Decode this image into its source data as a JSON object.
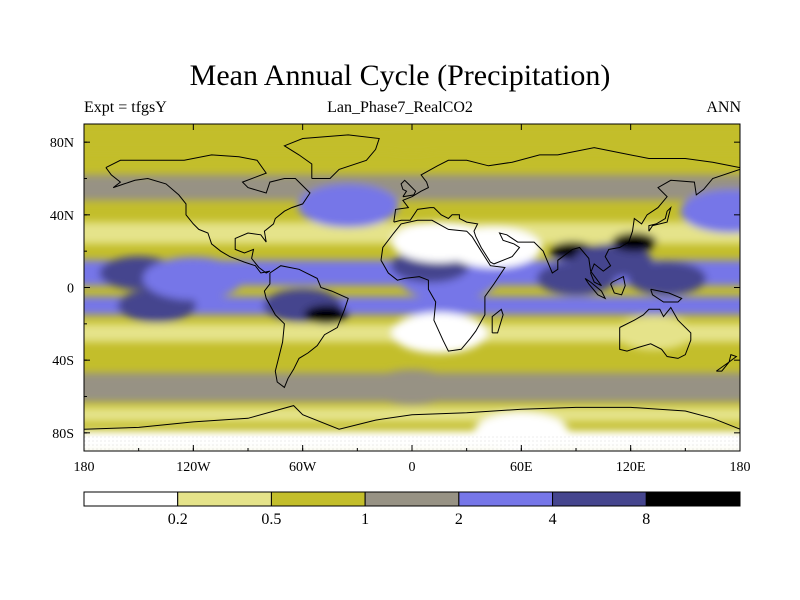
{
  "figure": {
    "title": "Mean Annual Cycle (Precipitation)",
    "left_subtitle": "Expt = tfgsY",
    "center_subtitle": "Lan_Phase7_RealCO2",
    "right_subtitle": "ANN"
  },
  "axes": {
    "x_ticks": [
      {
        "label": "180",
        "lon": -180
      },
      {
        "label": "120W",
        "lon": -120
      },
      {
        "label": "60W",
        "lon": -60
      },
      {
        "label": "0",
        "lon": 0
      },
      {
        "label": "60E",
        "lon": 60
      },
      {
        "label": "120E",
        "lon": 120
      },
      {
        "label": "180",
        "lon": 180
      }
    ],
    "y_ticks": [
      {
        "label": "80N",
        "lat": 80
      },
      {
        "label": "40N",
        "lat": 40
      },
      {
        "label": "0",
        "lat": 0
      },
      {
        "label": "40S",
        "lat": -40
      },
      {
        "label": "80S",
        "lat": -80
      }
    ]
  },
  "colorbar": {
    "labels": [
      "0.2",
      "0.5",
      "1",
      "2",
      "4",
      "8"
    ],
    "colors": [
      "#ffffff",
      "#e5e38a",
      "#c3be2b",
      "#979284",
      "#7676e8",
      "#45458e",
      "#000000"
    ]
  },
  "chart_data": {
    "type": "contour-map",
    "projection": "cylindrical-equidistant",
    "variable": "Precipitation",
    "lon_range": [
      -180,
      180
    ],
    "lat_range": [
      -90,
      90
    ],
    "levels": [
      0.2,
      0.5,
      1,
      2,
      4,
      8
    ],
    "regions": [
      {
        "name": "tropical-pacific-north",
        "lon": -150,
        "lat": 8,
        "level_index": 5
      },
      {
        "name": "tropical-pacific-south",
        "lon": -140,
        "lat": -10,
        "level_index": 5
      },
      {
        "name": "central-pacific-band",
        "lon": -120,
        "lat": 5,
        "level_index": 4
      },
      {
        "name": "indian-ocean-east",
        "lon": 90,
        "lat": 5,
        "level_index": 5
      },
      {
        "name": "bay-of-bengal",
        "lon": 88,
        "lat": 20,
        "level_index": 6
      },
      {
        "name": "south-china-sea",
        "lon": 110,
        "lat": 15,
        "level_index": 5
      },
      {
        "name": "west-pacific-warm-pool",
        "lon": 140,
        "lat": 5,
        "level_index": 5
      },
      {
        "name": "amazon",
        "lon": -60,
        "lat": -10,
        "level_index": 5
      },
      {
        "name": "brazil-max",
        "lon": -47,
        "lat": -15,
        "level_index": 6
      },
      {
        "name": "central-africa",
        "lon": 20,
        "lat": 5,
        "level_index": 4
      },
      {
        "name": "sahel-band",
        "lon": 10,
        "lat": 12,
        "level_index": 5
      },
      {
        "name": "sahara",
        "lon": 15,
        "lat": 25,
        "level_index": 0
      },
      {
        "name": "arabia",
        "lon": 45,
        "lat": 22,
        "level_index": 0
      },
      {
        "name": "tibet-max",
        "lon": 122,
        "lat": 25,
        "level_index": 6
      },
      {
        "name": "southern-africa-west",
        "lon": 15,
        "lat": -25,
        "level_index": 0
      },
      {
        "name": "australia-interior",
        "lon": 133,
        "lat": -25,
        "level_index": 1
      },
      {
        "name": "antarctica",
        "lon": 60,
        "lat": -80,
        "level_index": 0
      },
      {
        "name": "north-atlantic-storm-track",
        "lon": -35,
        "lat": 45,
        "level_index": 4
      },
      {
        "name": "north-pacific-storm-track",
        "lon": 175,
        "lat": 42,
        "level_index": 4
      },
      {
        "name": "southern-ocean",
        "lon": 0,
        "lat": -55,
        "level_index": 3
      },
      {
        "name": "arctic",
        "lon": 0,
        "lat": 82,
        "level_index": 2
      }
    ]
  }
}
